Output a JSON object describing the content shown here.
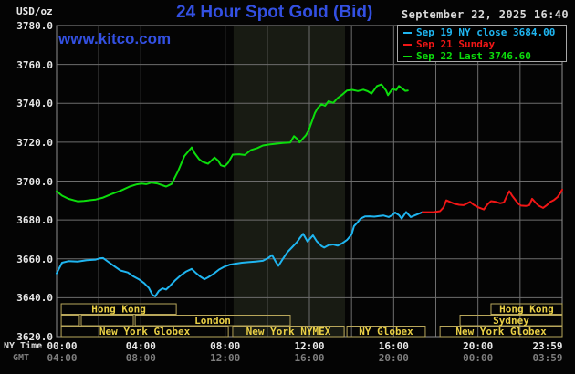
{
  "header": {
    "unit": "USD/oz",
    "title": "24 Hour Spot Gold (Bid)",
    "datetime": "September 22, 2025 16:40",
    "watermark": "www.kitco.com"
  },
  "colors": {
    "title_blue": "#3350e2",
    "grid": "#6d6d6d",
    "border": "#8f8f8f",
    "shade": "#181b13",
    "session_border": "#b9a75b",
    "session_text": "#e9cf45",
    "axis_text": "#e8e8e8",
    "gmt_text": "#7e7e7e"
  },
  "legend": {
    "items": [
      {
        "label": "Sep 19 NY close 3684.00",
        "color": "#1fb5f0"
      },
      {
        "label": "Sep 21 Sunday",
        "color": "#f11616"
      },
      {
        "label": "Sep 22 Last 3746.60",
        "color": "#0cdd0c"
      }
    ]
  },
  "axis": {
    "ny_label": "NY Time",
    "gmt_label": "GMT",
    "y_ticks": [
      "3780.0",
      "3760.0",
      "3740.0",
      "3720.0",
      "3700.0",
      "3680.0",
      "3660.0",
      "3640.0",
      "3620.0"
    ],
    "x_ticks": [
      {
        "h": 0,
        "ny": "00:00",
        "gmt": "04:00"
      },
      {
        "h": 4,
        "ny": "04:00",
        "gmt": "08:00"
      },
      {
        "h": 8,
        "ny": "08:00",
        "gmt": "12:00"
      },
      {
        "h": 12,
        "ny": "12:00",
        "gmt": "16:00"
      },
      {
        "h": 16,
        "ny": "16:00",
        "gmt": "20:00"
      },
      {
        "h": 20,
        "ny": "20:00",
        "gmt": "00:00"
      },
      {
        "h": 24,
        "ny": "23:59",
        "gmt": "03:59"
      }
    ]
  },
  "sessions": [
    {
      "row": 0,
      "label": "Hong Kong",
      "start": 0.22,
      "end": 5.68
    },
    {
      "row": 0,
      "label": "Hong Kong",
      "start": 20.62,
      "end": 24
    },
    {
      "row": 1,
      "label": "",
      "start": 0.22,
      "end": 1.08
    },
    {
      "row": 1,
      "label": "",
      "start": 1.17,
      "end": 3.64
    },
    {
      "row": 1,
      "label": "London",
      "start": 3.73,
      "end": 11.09
    },
    {
      "row": 1,
      "label": "Sydney",
      "start": 19.15,
      "end": 24
    },
    {
      "row": 2,
      "label": "New York Globex",
      "start": 0.22,
      "end": 8.15
    },
    {
      "row": 2,
      "label": "New York NYMEX",
      "start": 8.36,
      "end": 13.65
    },
    {
      "row": 2,
      "label": "NY Globex",
      "start": 13.78,
      "end": 17.5
    },
    {
      "row": 2,
      "label": "New York Globex",
      "start": 18.2,
      "end": 24
    }
  ],
  "chart_data": {
    "type": "line",
    "title": "24 Hour Spot Gold (Bid)",
    "xlabel": "NY Time (hours 00:00-23:59)",
    "ylabel": "USD/oz",
    "xlim": [
      0,
      24
    ],
    "ylim": [
      3620,
      3780
    ],
    "grid": "on",
    "legend_position": "top-right",
    "shade_band_hours": [
      8.4,
      13.69
    ],
    "series": [
      {
        "name": "Sep 19 NY close 3684.00",
        "color": "#1fb5f0",
        "points": [
          [
            0,
            3652.5
          ],
          [
            0.26,
            3658.0
          ],
          [
            0.56,
            3658.8
          ],
          [
            1.0,
            3658.6
          ],
          [
            1.43,
            3659.3
          ],
          [
            1.86,
            3659.6
          ],
          [
            2.08,
            3660.3
          ],
          [
            2.21,
            3660.4
          ],
          [
            2.51,
            3658.0
          ],
          [
            2.77,
            3656.0
          ],
          [
            3.03,
            3654.0
          ],
          [
            3.38,
            3653.0
          ],
          [
            3.64,
            3651.0
          ],
          [
            3.9,
            3649.5
          ],
          [
            4.16,
            3647.5
          ],
          [
            4.38,
            3645.0
          ],
          [
            4.55,
            3641.5
          ],
          [
            4.68,
            3640.7
          ],
          [
            4.85,
            3643.5
          ],
          [
            5.03,
            3644.8
          ],
          [
            5.2,
            3644.2
          ],
          [
            5.37,
            3646.0
          ],
          [
            5.63,
            3649.0
          ],
          [
            5.89,
            3651.5
          ],
          [
            6.15,
            3653.5
          ],
          [
            6.41,
            3654.8
          ],
          [
            6.59,
            3653.0
          ],
          [
            6.8,
            3651.0
          ],
          [
            7.02,
            3649.5
          ],
          [
            7.19,
            3650.5
          ],
          [
            7.45,
            3652.3
          ],
          [
            7.71,
            3654.5
          ],
          [
            7.97,
            3656.0
          ],
          [
            8.23,
            3657.0
          ],
          [
            8.49,
            3657.5
          ],
          [
            8.8,
            3658.0
          ],
          [
            9.1,
            3658.3
          ],
          [
            9.45,
            3658.6
          ],
          [
            9.79,
            3659.0
          ],
          [
            10.05,
            3660.5
          ],
          [
            10.23,
            3661.9
          ],
          [
            10.4,
            3658.5
          ],
          [
            10.53,
            3656.4
          ],
          [
            10.74,
            3660.0
          ],
          [
            10.96,
            3663.5
          ],
          [
            11.18,
            3666.0
          ],
          [
            11.4,
            3668.5
          ],
          [
            11.53,
            3670.5
          ],
          [
            11.7,
            3672.9
          ],
          [
            11.91,
            3668.9
          ],
          [
            12.17,
            3672.1
          ],
          [
            12.35,
            3669.0
          ],
          [
            12.57,
            3666.6
          ],
          [
            12.7,
            3665.8
          ],
          [
            12.91,
            3667.0
          ],
          [
            13.13,
            3667.4
          ],
          [
            13.34,
            3666.8
          ],
          [
            13.56,
            3668.0
          ],
          [
            13.78,
            3669.7
          ],
          [
            14.0,
            3672.5
          ],
          [
            14.12,
            3676.8
          ],
          [
            14.3,
            3679.0
          ],
          [
            14.43,
            3680.7
          ],
          [
            14.64,
            3681.8
          ],
          [
            14.86,
            3681.9
          ],
          [
            15.08,
            3681.7
          ],
          [
            15.29,
            3682.0
          ],
          [
            15.51,
            3682.3
          ],
          [
            15.77,
            3681.5
          ],
          [
            15.94,
            3682.5
          ],
          [
            16.07,
            3683.8
          ],
          [
            16.25,
            3682.5
          ],
          [
            16.38,
            3680.7
          ],
          [
            16.59,
            3684.1
          ],
          [
            16.81,
            3681.5
          ],
          [
            17.03,
            3682.5
          ],
          [
            17.37,
            3684.0
          ]
        ]
      },
      {
        "name": "Sep 21 Sunday",
        "color": "#f11616",
        "points": [
          [
            17.37,
            3684.0
          ],
          [
            17.89,
            3684.0
          ],
          [
            18.2,
            3684.5
          ],
          [
            18.37,
            3686.5
          ],
          [
            18.5,
            3690.1
          ],
          [
            18.67,
            3689.3
          ],
          [
            18.89,
            3688.3
          ],
          [
            19.11,
            3687.8
          ],
          [
            19.32,
            3687.6
          ],
          [
            19.5,
            3688.6
          ],
          [
            19.63,
            3689.3
          ],
          [
            19.8,
            3687.8
          ],
          [
            20.02,
            3686.5
          ],
          [
            20.28,
            3685.4
          ],
          [
            20.45,
            3688.0
          ],
          [
            20.62,
            3689.7
          ],
          [
            20.84,
            3689.3
          ],
          [
            21.06,
            3688.6
          ],
          [
            21.23,
            3689.0
          ],
          [
            21.4,
            3693.0
          ],
          [
            21.49,
            3694.8
          ],
          [
            21.62,
            3692.5
          ],
          [
            21.79,
            3690.1
          ],
          [
            21.92,
            3688.3
          ],
          [
            22.05,
            3687.4
          ],
          [
            22.27,
            3687.2
          ],
          [
            22.44,
            3687.6
          ],
          [
            22.57,
            3690.9
          ],
          [
            22.75,
            3688.8
          ],
          [
            22.88,
            3687.4
          ],
          [
            23.09,
            3686.2
          ],
          [
            23.27,
            3687.6
          ],
          [
            23.44,
            3689.3
          ],
          [
            23.61,
            3690.3
          ],
          [
            23.78,
            3691.8
          ],
          [
            23.91,
            3693.8
          ],
          [
            24.0,
            3695.6
          ]
        ]
      },
      {
        "name": "Sep 22 Last 3746.60",
        "color": "#0cdd0c",
        "points": [
          [
            0,
            3694.8
          ],
          [
            0.26,
            3692.5
          ],
          [
            0.56,
            3690.9
          ],
          [
            1.0,
            3689.6
          ],
          [
            1.3,
            3689.8
          ],
          [
            1.65,
            3690.3
          ],
          [
            1.86,
            3690.5
          ],
          [
            2.21,
            3691.5
          ],
          [
            2.6,
            3693.3
          ],
          [
            3.03,
            3695.0
          ],
          [
            3.47,
            3697.2
          ],
          [
            3.81,
            3698.3
          ],
          [
            4.03,
            3698.7
          ],
          [
            4.25,
            3698.4
          ],
          [
            4.51,
            3699.2
          ],
          [
            4.77,
            3698.8
          ],
          [
            5.2,
            3697.2
          ],
          [
            5.46,
            3698.5
          ],
          [
            5.76,
            3705.0
          ],
          [
            6.07,
            3712.9
          ],
          [
            6.41,
            3717.3
          ],
          [
            6.54,
            3714.5
          ],
          [
            6.76,
            3711.3
          ],
          [
            6.93,
            3709.9
          ],
          [
            7.19,
            3708.9
          ],
          [
            7.5,
            3712.1
          ],
          [
            7.67,
            3710.5
          ],
          [
            7.8,
            3708.1
          ],
          [
            7.97,
            3707.5
          ],
          [
            8.15,
            3709.5
          ],
          [
            8.36,
            3713.6
          ],
          [
            8.67,
            3713.8
          ],
          [
            8.93,
            3713.4
          ],
          [
            9.23,
            3716.0
          ],
          [
            9.53,
            3717.0
          ],
          [
            9.79,
            3718.3
          ],
          [
            10.1,
            3718.8
          ],
          [
            10.4,
            3719.2
          ],
          [
            10.74,
            3719.6
          ],
          [
            11.09,
            3719.8
          ],
          [
            11.27,
            3723.1
          ],
          [
            11.44,
            3721.5
          ],
          [
            11.53,
            3719.9
          ],
          [
            11.7,
            3722.0
          ],
          [
            11.83,
            3723.5
          ],
          [
            11.96,
            3726.0
          ],
          [
            12.13,
            3731.0
          ],
          [
            12.26,
            3735.0
          ],
          [
            12.39,
            3737.5
          ],
          [
            12.57,
            3739.5
          ],
          [
            12.74,
            3738.7
          ],
          [
            12.91,
            3741.1
          ],
          [
            13.13,
            3740.2
          ],
          [
            13.34,
            3742.7
          ],
          [
            13.56,
            3744.5
          ],
          [
            13.78,
            3746.6
          ],
          [
            14.04,
            3746.9
          ],
          [
            14.3,
            3746.3
          ],
          [
            14.56,
            3747.0
          ],
          [
            14.77,
            3746.2
          ],
          [
            14.95,
            3745.0
          ],
          [
            15.21,
            3748.9
          ],
          [
            15.42,
            3749.7
          ],
          [
            15.64,
            3746.6
          ],
          [
            15.73,
            3744.2
          ],
          [
            15.94,
            3747.4
          ],
          [
            16.12,
            3746.8
          ],
          [
            16.25,
            3748.9
          ],
          [
            16.38,
            3747.8
          ],
          [
            16.55,
            3746.4
          ],
          [
            16.67,
            3746.6
          ]
        ]
      }
    ]
  }
}
